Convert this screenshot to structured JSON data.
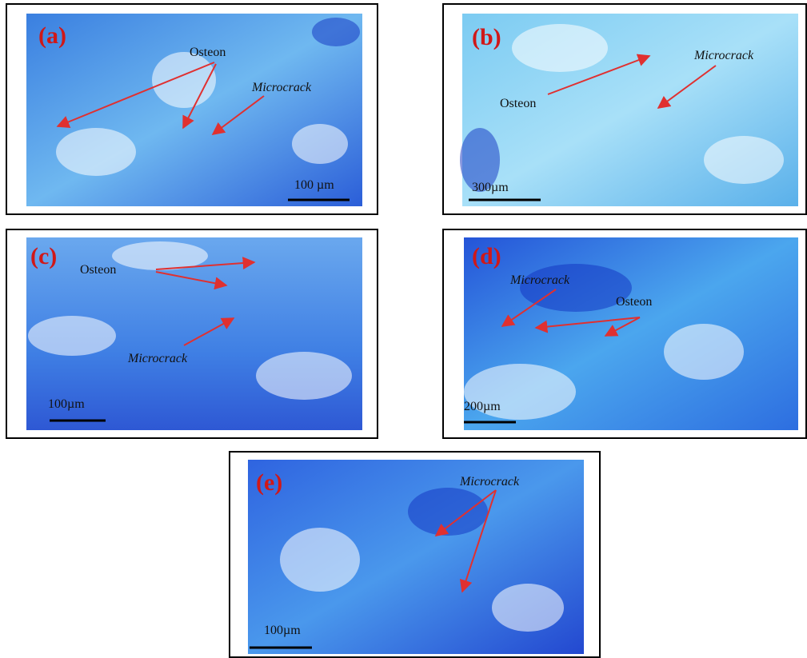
{
  "panels": [
    {
      "label": "(a)",
      "annotations": [
        "Osteon",
        "Microcrack"
      ],
      "scale_bar": "100 µm"
    },
    {
      "label": "(b)",
      "annotations": [
        "Microcrack",
        "Osteon"
      ],
      "scale_bar": "300µm"
    },
    {
      "label": "(c)",
      "annotations": [
        "Osteon",
        "Microcrack"
      ],
      "scale_bar": "100µm"
    },
    {
      "label": "(d)",
      "annotations": [
        "Microcrack",
        "Osteon"
      ],
      "scale_bar": "200µm"
    },
    {
      "label": "(e)",
      "annotations": [
        "Microcrack"
      ],
      "scale_bar": "100µm"
    }
  ]
}
